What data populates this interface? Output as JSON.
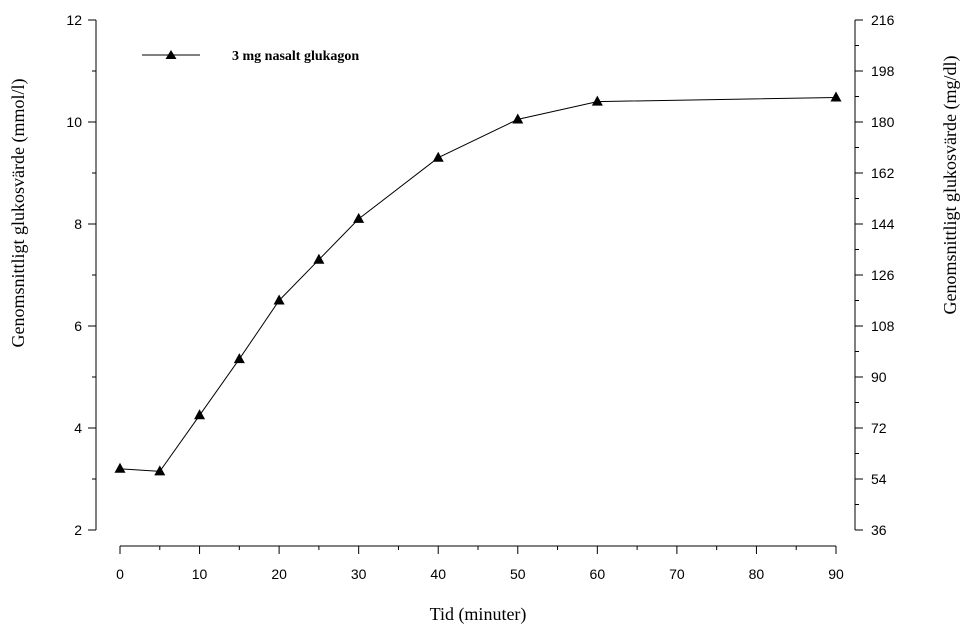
{
  "chart_data": {
    "type": "line",
    "xlabel": "Tid (minuter)",
    "ylabel": "Genomsnittligt glukosvärde (mmol/l)",
    "ylabel_right": "Genomsnittligt glukosvärde (mg/dl)",
    "x_ticks": [
      "0",
      "10",
      "20",
      "30",
      "40",
      "50",
      "60",
      "70",
      "80",
      "90"
    ],
    "y_ticks": [
      "2",
      "4",
      "6",
      "8",
      "10",
      "12"
    ],
    "y_right_ticks": [
      "36",
      "54",
      "72",
      "90",
      "108",
      "126",
      "144",
      "162",
      "180",
      "198",
      "216"
    ],
    "xlim": [
      0,
      90
    ],
    "ylim": [
      2,
      12
    ],
    "ylim_right": [
      36,
      216
    ],
    "grid": false,
    "legend_position": "top-left",
    "series": [
      {
        "name": "3 mg nasalt glukagon",
        "marker": "triangle",
        "color": "#000000",
        "x": [
          0,
          5,
          10,
          15,
          20,
          25,
          30,
          40,
          50,
          60,
          90
        ],
        "y": [
          3.2,
          3.15,
          4.25,
          5.35,
          6.5,
          7.3,
          8.1,
          9.3,
          10.05,
          10.4,
          10.48
        ]
      }
    ]
  }
}
